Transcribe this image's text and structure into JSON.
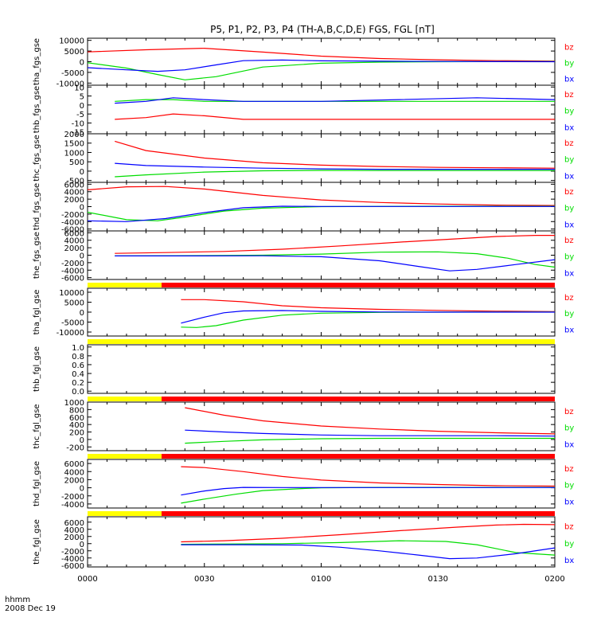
{
  "figure": {
    "title": "P5, P1, P2, P3, P4 (TH-A,B,C,D,E) FGS, FGL [nT]",
    "time_label": "hhmm",
    "date_label": "2008 Dec 19",
    "x_ticks": [
      "0000",
      "0030",
      "0100",
      "0130",
      "0200"
    ],
    "colors": {
      "bx": "#0000ff",
      "by": "#00dd00",
      "bz": "#ff0000",
      "flag_yellow": "#ffff00",
      "flag_red": "#ff0000"
    }
  },
  "chart_data": [
    {
      "type": "line",
      "ylabel": "tha_fgs_gse",
      "ylim": [
        -11000,
        11000
      ],
      "yticks": [
        "10000",
        "5000",
        "0",
        "-5000",
        "-10000"
      ],
      "ytick_values": [
        10000,
        5000,
        0,
        -5000,
        -10000
      ],
      "x_unit": "minutes",
      "xlim": [
        0,
        120
      ],
      "legend": [
        "bz",
        "by",
        "bx"
      ],
      "series": [
        {
          "name": "bz",
          "color": "#ff0000",
          "x": [
            0,
            15,
            30,
            45,
            60,
            75,
            90,
            105,
            120
          ],
          "values": [
            4600,
            5600,
            6300,
            4500,
            2600,
            1500,
            900,
            500,
            300
          ]
        },
        {
          "name": "by",
          "color": "#00dd00",
          "x": [
            0,
            10,
            18,
            25,
            33,
            45,
            60,
            75,
            90,
            120
          ],
          "values": [
            -500,
            -3000,
            -6000,
            -8500,
            -7000,
            -2500,
            -700,
            -200,
            0,
            100
          ]
        },
        {
          "name": "bx",
          "color": "#0000ff",
          "x": [
            0,
            10,
            18,
            25,
            33,
            40,
            50,
            60,
            90,
            120
          ],
          "values": [
            -2800,
            -3800,
            -4500,
            -3800,
            -1500,
            500,
            800,
            400,
            100,
            0
          ]
        }
      ]
    },
    {
      "type": "line",
      "ylabel": "thb_fgs_gse",
      "ylim": [
        -16,
        11
      ],
      "yticks": [
        "10",
        "5",
        "0",
        "-5",
        "-10",
        "-15"
      ],
      "ytick_values": [
        10,
        5,
        0,
        -5,
        -10,
        -15
      ],
      "x_unit": "minutes",
      "xlim": [
        0,
        120
      ],
      "legend": [
        "bz",
        "by",
        "bx"
      ],
      "series": [
        {
          "name": "bz",
          "color": "#ff0000",
          "x": [
            7,
            15,
            22,
            30,
            40,
            60,
            80,
            100,
            120
          ],
          "values": [
            -8,
            -7,
            -5,
            -6,
            -8,
            -8,
            -8,
            -8,
            -8
          ]
        },
        {
          "name": "by",
          "color": "#00dd00",
          "x": [
            7,
            15,
            22,
            30,
            40,
            60,
            80,
            100,
            120
          ],
          "values": [
            2,
            3,
            3,
            2,
            2,
            2,
            2,
            2,
            2
          ]
        },
        {
          "name": "bx",
          "color": "#0000ff",
          "x": [
            7,
            15,
            22,
            30,
            40,
            60,
            80,
            100,
            120
          ],
          "values": [
            1,
            2,
            4,
            3,
            2,
            2,
            3,
            4,
            3
          ]
        }
      ]
    },
    {
      "type": "line",
      "ylabel": "thc_fgs_gse",
      "ylim": [
        -600,
        2000
      ],
      "yticks": [
        "2000",
        "1500",
        "1000",
        "500",
        "0",
        "-500"
      ],
      "ytick_values": [
        2000,
        1500,
        1000,
        500,
        0,
        -500
      ],
      "x_unit": "minutes",
      "xlim": [
        0,
        120
      ],
      "legend": [
        "bz",
        "by",
        "bx"
      ],
      "series": [
        {
          "name": "bz",
          "color": "#ff0000",
          "x": [
            7,
            15,
            30,
            45,
            60,
            75,
            90,
            105,
            120
          ],
          "values": [
            1600,
            1100,
            700,
            450,
            320,
            250,
            200,
            180,
            160
          ]
        },
        {
          "name": "by",
          "color": "#00dd00",
          "x": [
            7,
            15,
            30,
            45,
            60,
            75,
            90,
            105,
            120
          ],
          "values": [
            -300,
            -200,
            -50,
            20,
            40,
            30,
            30,
            30,
            30
          ]
        },
        {
          "name": "bx",
          "color": "#0000ff",
          "x": [
            7,
            15,
            30,
            45,
            60,
            75,
            90,
            105,
            120
          ],
          "values": [
            420,
            300,
            220,
            160,
            120,
            100,
            100,
            100,
            100
          ]
        }
      ]
    },
    {
      "type": "line",
      "ylabel": "thd_fgs_gse",
      "ylim": [
        -6500,
        6500
      ],
      "yticks": [
        "6000",
        "4000",
        "2000",
        "0",
        "-2000",
        "-4000",
        "-6000"
      ],
      "ytick_values": [
        6000,
        4000,
        2000,
        0,
        -2000,
        -4000,
        -6000
      ],
      "x_unit": "minutes",
      "xlim": [
        0,
        120
      ],
      "legend": [
        "bz",
        "by",
        "bx"
      ],
      "series": [
        {
          "name": "bz",
          "color": "#ff0000",
          "x": [
            0,
            10,
            20,
            30,
            45,
            60,
            75,
            90,
            105,
            120
          ],
          "values": [
            4500,
            5300,
            5400,
            4700,
            3000,
            1800,
            1100,
            700,
            400,
            300
          ]
        },
        {
          "name": "by",
          "color": "#00dd00",
          "x": [
            0,
            10,
            18,
            25,
            35,
            45,
            60,
            90,
            120
          ],
          "values": [
            -1500,
            -3500,
            -3800,
            -2800,
            -1200,
            -400,
            0,
            100,
            100
          ]
        },
        {
          "name": "bx",
          "color": "#0000ff",
          "x": [
            0,
            10,
            20,
            30,
            40,
            50,
            60,
            90,
            120
          ],
          "values": [
            -3800,
            -4000,
            -3200,
            -1600,
            -300,
            100,
            50,
            50,
            50
          ]
        }
      ]
    },
    {
      "type": "line",
      "ylabel": "the_fgs_gse",
      "ylim": [
        -6500,
        6500
      ],
      "yticks": [
        "6000",
        "4000",
        "2000",
        "0",
        "-2000",
        "-4000",
        "-6000"
      ],
      "ytick_values": [
        6000,
        4000,
        2000,
        0,
        -2000,
        -4000,
        -6000
      ],
      "x_unit": "minutes",
      "xlim": [
        0,
        120
      ],
      "legend": [
        "bz",
        "by",
        "bx"
      ],
      "series": [
        {
          "name": "bz",
          "color": "#ff0000",
          "x": [
            7,
            20,
            35,
            50,
            65,
            80,
            95,
            105,
            115,
            120
          ],
          "values": [
            500,
            700,
            1000,
            1600,
            2500,
            3500,
            4400,
            5000,
            5300,
            5300
          ]
        },
        {
          "name": "by",
          "color": "#00dd00",
          "x": [
            7,
            30,
            45,
            60,
            75,
            90,
            100,
            108,
            115,
            120
          ],
          "values": [
            -200,
            -100,
            0,
            300,
            800,
            900,
            400,
            -800,
            -2500,
            -3200
          ]
        },
        {
          "name": "bx",
          "color": "#0000ff",
          "x": [
            7,
            30,
            45,
            60,
            75,
            85,
            93,
            100,
            110,
            120
          ],
          "values": [
            -200,
            -200,
            -150,
            -400,
            -1500,
            -3000,
            -4200,
            -3800,
            -2500,
            -1200
          ]
        }
      ]
    },
    {
      "type": "line",
      "ylabel": "tha_fgl_gse",
      "ylim": [
        -12000,
        12000
      ],
      "yticks": [
        "10000",
        "5000",
        "0",
        "-5000",
        "-10000"
      ],
      "ytick_values": [
        10000,
        5000,
        0,
        -5000,
        -10000
      ],
      "x_unit": "minutes",
      "xlim": [
        0,
        120
      ],
      "legend": [
        "bz",
        "by",
        "bx"
      ],
      "flag_bar": [
        {
          "from": 0,
          "to": 19,
          "state": "yellow"
        },
        {
          "from": 19,
          "to": 120,
          "state": "red"
        }
      ],
      "series": [
        {
          "name": "bz",
          "color": "#ff0000",
          "x": [
            24,
            30,
            40,
            50,
            60,
            75,
            90,
            105,
            120
          ],
          "values": [
            6300,
            6300,
            5200,
            3200,
            2200,
            1400,
            900,
            500,
            300
          ]
        },
        {
          "name": "by",
          "color": "#00dd00",
          "x": [
            24,
            28,
            33,
            40,
            50,
            60,
            75,
            90,
            120
          ],
          "values": [
            -7500,
            -7700,
            -6800,
            -4000,
            -1500,
            -500,
            -100,
            0,
            100
          ]
        },
        {
          "name": "bx",
          "color": "#0000ff",
          "x": [
            24,
            30,
            35,
            40,
            50,
            60,
            75,
            90,
            120
          ],
          "values": [
            -5500,
            -2500,
            -300,
            600,
            800,
            400,
            100,
            0,
            0
          ]
        }
      ]
    },
    {
      "type": "line",
      "ylabel": "thb_fgl_gse",
      "ylim": [
        -0.05,
        1.05
      ],
      "yticks": [
        "1.0",
        "0.8",
        "0.6",
        "0.4",
        "0.2",
        "0.0"
      ],
      "ytick_values": [
        1.0,
        0.8,
        0.6,
        0.4,
        0.2,
        0.0
      ],
      "x_unit": "minutes",
      "xlim": [
        0,
        120
      ],
      "flag_bar": [
        {
          "from": 0,
          "to": 120,
          "state": "yellow"
        }
      ],
      "series": []
    },
    {
      "type": "line",
      "ylabel": "thc_fgl_gse",
      "ylim": [
        -300,
        1000
      ],
      "yticks": [
        "1000",
        "800",
        "600",
        "400",
        "200",
        "0",
        "-200"
      ],
      "ytick_values": [
        1000,
        800,
        600,
        400,
        200,
        0,
        -200
      ],
      "x_unit": "minutes",
      "xlim": [
        0,
        120
      ],
      "legend": [
        "bz",
        "by",
        "bx"
      ],
      "flag_bar": [
        {
          "from": 0,
          "to": 19,
          "state": "yellow"
        },
        {
          "from": 19,
          "to": 120,
          "state": "red"
        }
      ],
      "series": [
        {
          "name": "bz",
          "color": "#ff0000",
          "x": [
            25,
            35,
            45,
            60,
            75,
            90,
            105,
            120
          ],
          "values": [
            850,
            650,
            500,
            360,
            280,
            220,
            180,
            150
          ]
        },
        {
          "name": "by",
          "color": "#00dd00",
          "x": [
            25,
            35,
            45,
            60,
            75,
            90,
            105,
            120
          ],
          "values": [
            -100,
            -50,
            -10,
            20,
            30,
            30,
            30,
            30
          ]
        },
        {
          "name": "bx",
          "color": "#0000ff",
          "x": [
            25,
            35,
            45,
            60,
            75,
            90,
            105,
            120
          ],
          "values": [
            250,
            200,
            160,
            120,
            100,
            100,
            100,
            90
          ]
        }
      ]
    },
    {
      "type": "line",
      "ylabel": "thd_fgl_gse",
      "ylim": [
        -5000,
        7000
      ],
      "yticks": [
        "6000",
        "4000",
        "2000",
        "0",
        "-2000",
        "-4000"
      ],
      "ytick_values": [
        6000,
        4000,
        2000,
        0,
        -2000,
        -4000
      ],
      "x_unit": "minutes",
      "xlim": [
        0,
        120
      ],
      "legend": [
        "bz",
        "by",
        "bx"
      ],
      "flag_bar": [
        {
          "from": 0,
          "to": 19,
          "state": "yellow"
        },
        {
          "from": 19,
          "to": 120,
          "state": "red"
        }
      ],
      "series": [
        {
          "name": "bz",
          "color": "#ff0000",
          "x": [
            24,
            30,
            40,
            50,
            60,
            75,
            90,
            105,
            120
          ],
          "values": [
            5200,
            5000,
            4000,
            2800,
            1900,
            1200,
            800,
            500,
            400
          ]
        },
        {
          "name": "by",
          "color": "#00dd00",
          "x": [
            24,
            30,
            38,
            45,
            55,
            60,
            75,
            90,
            120
          ],
          "values": [
            -3800,
            -2800,
            -1600,
            -700,
            -200,
            0,
            100,
            100,
            100
          ]
        },
        {
          "name": "bx",
          "color": "#0000ff",
          "x": [
            24,
            30,
            35,
            40,
            50,
            60,
            75,
            90,
            120
          ],
          "values": [
            -1800,
            -800,
            -200,
            100,
            50,
            50,
            50,
            50,
            50
          ]
        }
      ]
    },
    {
      "type": "line",
      "ylabel": "the_fgl_gse",
      "ylim": [
        -6500,
        7500
      ],
      "yticks": [
        "6000",
        "4000",
        "2000",
        "0",
        "-2000",
        "-4000",
        "-6000"
      ],
      "ytick_values": [
        6000,
        4000,
        2000,
        0,
        -2000,
        -4000,
        -6000
      ],
      "x_unit": "minutes",
      "xlim": [
        0,
        120
      ],
      "legend": [
        "bz",
        "by",
        "bx"
      ],
      "flag_bar": [
        {
          "from": 0,
          "to": 19,
          "state": "yellow"
        },
        {
          "from": 19,
          "to": 120,
          "state": "red"
        }
      ],
      "series": [
        {
          "name": "bz",
          "color": "#ff0000",
          "x": [
            24,
            35,
            50,
            65,
            80,
            95,
            105,
            112,
            120
          ],
          "values": [
            500,
            800,
            1500,
            2500,
            3600,
            4600,
            5200,
            5400,
            5300
          ]
        },
        {
          "name": "by",
          "color": "#00dd00",
          "x": [
            24,
            35,
            50,
            65,
            80,
            92,
            100,
            110,
            120
          ],
          "values": [
            -200,
            -100,
            0,
            300,
            800,
            600,
            -300,
            -2500,
            -3200
          ]
        },
        {
          "name": "bx",
          "color": "#0000ff",
          "x": [
            24,
            40,
            55,
            65,
            75,
            85,
            93,
            100,
            110,
            120
          ],
          "values": [
            -300,
            -300,
            -400,
            -1000,
            -2000,
            -3200,
            -4200,
            -4000,
            -2800,
            -1200
          ]
        }
      ]
    }
  ]
}
